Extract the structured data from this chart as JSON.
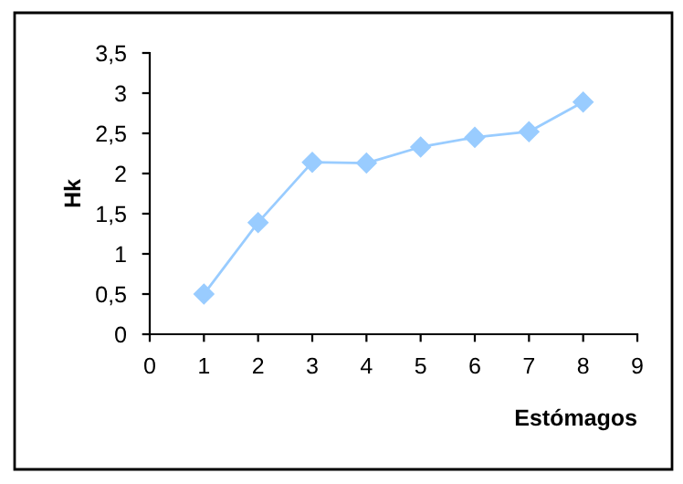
{
  "chart_data": {
    "type": "line",
    "xlabel": "Estómagos",
    "ylabel": "Hk",
    "x": [
      1,
      2,
      3,
      4,
      5,
      6,
      7,
      8
    ],
    "series": [
      {
        "color": "#99ccff",
        "values": [
          0.5,
          1.39,
          2.14,
          2.13,
          2.33,
          2.45,
          2.52,
          2.89
        ]
      }
    ],
    "xlim": [
      0,
      9
    ],
    "xticks": [
      0,
      1,
      2,
      3,
      4,
      5,
      6,
      7,
      8,
      9
    ],
    "ylim": [
      0,
      3.5
    ],
    "yticks": [
      {
        "value": 0,
        "label": "0"
      },
      {
        "value": 0.5,
        "label": "0,5"
      },
      {
        "value": 1,
        "label": "1"
      },
      {
        "value": 1.5,
        "label": "1,5"
      },
      {
        "value": 2,
        "label": "2"
      },
      {
        "value": 2.5,
        "label": "2,5"
      },
      {
        "value": 3,
        "label": "3"
      },
      {
        "value": 3.5,
        "label": "3,5"
      }
    ],
    "marker": "diamond",
    "line_style": "solid",
    "grid": false,
    "legend": false
  }
}
